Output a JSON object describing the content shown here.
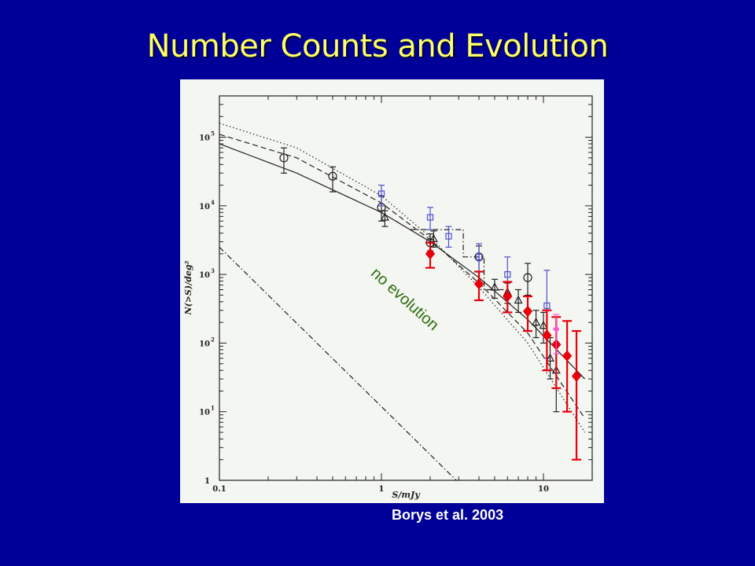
{
  "slide": {
    "title": "Number Counts and Evolution",
    "citation": "Borys et al. 2003"
  },
  "colors": {
    "background": "#000099",
    "title": "#ffff66",
    "panel": "#f4f6f1",
    "annotation": "#2e6e10",
    "red_points": "#e8000b",
    "blue_points": "#4f4fd0",
    "magenta_point": "#ff55cc",
    "black": "#222222"
  },
  "chart_data": {
    "type": "scatter",
    "title": "",
    "xlabel": "S/mJy",
    "ylabel": "N(>S)/deg²",
    "xscale": "log",
    "yscale": "log",
    "xlim": [
      0.1,
      20
    ],
    "ylim": [
      1,
      400000
    ],
    "xticklabels": [
      {
        "v": 0.1,
        "t": "0.1"
      },
      {
        "v": 1,
        "t": "1"
      },
      {
        "v": 10,
        "t": "10"
      }
    ],
    "yticklabels": [
      {
        "v": 1,
        "t": "1",
        "sup": ""
      },
      {
        "v": 10,
        "t": "10",
        "sup": "1"
      },
      {
        "v": 100,
        "t": "10",
        "sup": "2"
      },
      {
        "v": 1000,
        "t": "10",
        "sup": "3"
      },
      {
        "v": 10000,
        "t": "10",
        "sup": "4"
      },
      {
        "v": 100000,
        "t": "10",
        "sup": "5"
      }
    ],
    "annotation": {
      "text": "no evolution",
      "x": 0.85,
      "y": 1000
    },
    "curves": [
      {
        "style": "solid",
        "x": [
          0.1,
          0.3,
          1,
          2,
          4,
          8,
          18
        ],
        "y": [
          80000,
          30000,
          8000,
          3000,
          900,
          220,
          30
        ]
      },
      {
        "style": "dashed",
        "x": [
          0.1,
          0.3,
          1,
          2,
          4,
          8,
          18
        ],
        "y": [
          110000,
          50000,
          11000,
          3200,
          750,
          140,
          8
        ]
      },
      {
        "style": "dotted",
        "x": [
          0.1,
          0.3,
          1,
          2,
          4,
          8,
          18
        ],
        "y": [
          160000,
          70000,
          14000,
          3500,
          650,
          100,
          5
        ]
      },
      {
        "style": "dashdot",
        "x": [
          0.1,
          2.9
        ],
        "y": [
          2500,
          1
        ]
      },
      {
        "style": "dashdot-step",
        "x": [
          1.5,
          3.2,
          3.2,
          4.3,
          4.3,
          6.0
        ],
        "y": [
          4500,
          4500,
          1800,
          1800,
          600,
          600
        ]
      }
    ],
    "series": [
      {
        "marker": "circle",
        "color": "#222222",
        "points": [
          {
            "x": 0.25,
            "y": 50000,
            "lo": 30000,
            "hi": 70000
          },
          {
            "x": 0.5,
            "y": 27000,
            "lo": 16000,
            "hi": 37000
          },
          {
            "x": 1.0,
            "y": 9500,
            "lo": 6000,
            "hi": 14000
          },
          {
            "x": 2.0,
            "y": 2900,
            "lo": 2200,
            "hi": 3900
          },
          {
            "x": 4.0,
            "y": 1800,
            "lo": 1100,
            "hi": 2600
          },
          {
            "x": 8.0,
            "y": 900,
            "lo": 500,
            "hi": 1450
          }
        ]
      },
      {
        "marker": "square",
        "color": "#4f4fd0",
        "points": [
          {
            "x": 1.0,
            "y": 15000,
            "lo": 10000,
            "hi": 20000
          },
          {
            "x": 2.0,
            "y": 6800,
            "lo": 4500,
            "hi": 9500
          },
          {
            "x": 2.6,
            "y": 3600,
            "lo": 2500,
            "hi": 5000
          },
          {
            "x": 4.0,
            "y": 1800,
            "lo": 1100,
            "hi": 2800
          },
          {
            "x": 6.0,
            "y": 1000,
            "lo": 500,
            "hi": 1800
          },
          {
            "x": 10.5,
            "y": 350,
            "lo": 60,
            "hi": 1150
          }
        ]
      },
      {
        "marker": "triangle",
        "color": "#222222",
        "points": [
          {
            "x": 1.05,
            "y": 6800,
            "lo": 5000,
            "hi": 8500
          },
          {
            "x": 2.1,
            "y": 3300,
            "lo": 2500,
            "hi": 4300
          },
          {
            "x": 5.0,
            "y": 650,
            "lo": 450,
            "hi": 850
          },
          {
            "x": 6.0,
            "y": 550,
            "lo": 380,
            "hi": 750
          },
          {
            "x": 7.0,
            "y": 420,
            "lo": 280,
            "hi": 600
          },
          {
            "x": 9.0,
            "y": 200,
            "lo": 120,
            "hi": 300
          },
          {
            "x": 10.0,
            "y": 180,
            "lo": 100,
            "hi": 280
          },
          {
            "x": 11.0,
            "y": 60,
            "lo": 30,
            "hi": 120
          },
          {
            "x": 12.0,
            "y": 40,
            "lo": 10,
            "hi": 100
          }
        ]
      },
      {
        "marker": "diamond",
        "color": "#e8000b",
        "points": [
          {
            "x": 2.0,
            "y": 2000,
            "lo": 1250,
            "hi": 2900
          },
          {
            "x": 4.0,
            "y": 730,
            "lo": 420,
            "hi": 1100
          },
          {
            "x": 6.0,
            "y": 480,
            "lo": 280,
            "hi": 780
          },
          {
            "x": 8.0,
            "y": 290,
            "lo": 150,
            "hi": 480
          },
          {
            "x": 10.5,
            "y": 130,
            "lo": 40,
            "hi": 300
          },
          {
            "x": 12.0,
            "y": 95,
            "lo": 22,
            "hi": 240
          },
          {
            "x": 14.0,
            "y": 65,
            "lo": 10,
            "hi": 210
          },
          {
            "x": 16.0,
            "y": 33,
            "lo": 2,
            "hi": 150
          }
        ]
      },
      {
        "marker": "diamond-small",
        "color": "#ff55cc",
        "points": [
          {
            "x": 12.0,
            "y": 160,
            "lo": 70,
            "hi": 260
          }
        ]
      }
    ]
  }
}
